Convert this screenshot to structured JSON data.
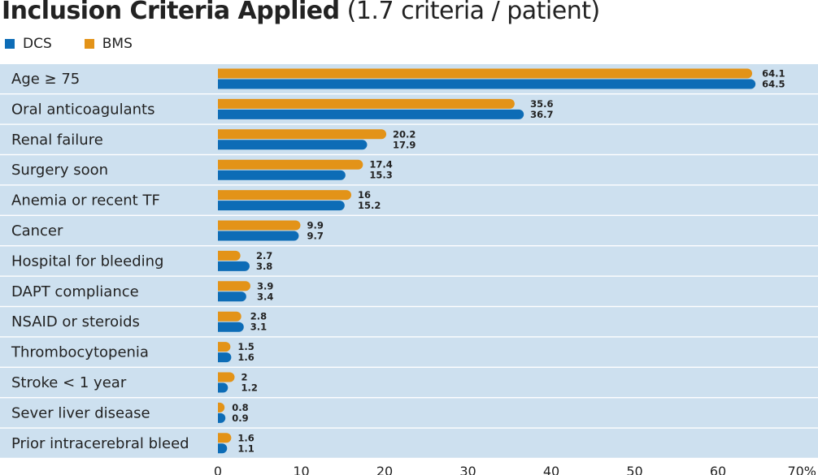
{
  "title_bold": "Inclusion Criteria Applied",
  "title_rest": " (1.7 criteria / patient)",
  "chart_data": {
    "type": "bar",
    "orientation": "horizontal",
    "title": "Inclusion Criteria Applied (1.7 criteria / patient)",
    "categories": [
      "Age ≥ 75",
      "Oral anticoagulants",
      "Renal failure",
      "Surgery soon",
      "Anemia or recent TF",
      "Cancer",
      "Hospital for bleeding",
      "DAPT compliance",
      "NSAID or steroids",
      "Thrombocytopenia",
      "Stroke < 1 year",
      "Sever liver disease",
      "Prior intracerebral bleed"
    ],
    "series": [
      {
        "name": "BMS",
        "color": "#e39318",
        "values": [
          64.1,
          35.6,
          20.2,
          17.4,
          16,
          9.9,
          2.7,
          3.9,
          2.8,
          1.5,
          2,
          0.8,
          1.6
        ]
      },
      {
        "name": "DCS",
        "color": "#0d6cb6",
        "values": [
          64.5,
          36.7,
          17.9,
          15.3,
          15.2,
          9.7,
          3.8,
          3.4,
          3.1,
          1.6,
          1.2,
          0.9,
          1.1
        ]
      }
    ],
    "legend_order": [
      "DCS",
      "BMS"
    ],
    "legend_position": "top-left",
    "xlim": [
      0,
      70
    ],
    "xticks": [
      "0",
      "10",
      "20",
      "30",
      "40",
      "50",
      "60",
      "70%"
    ],
    "row_background": "#cde0ef",
    "grid": false
  }
}
